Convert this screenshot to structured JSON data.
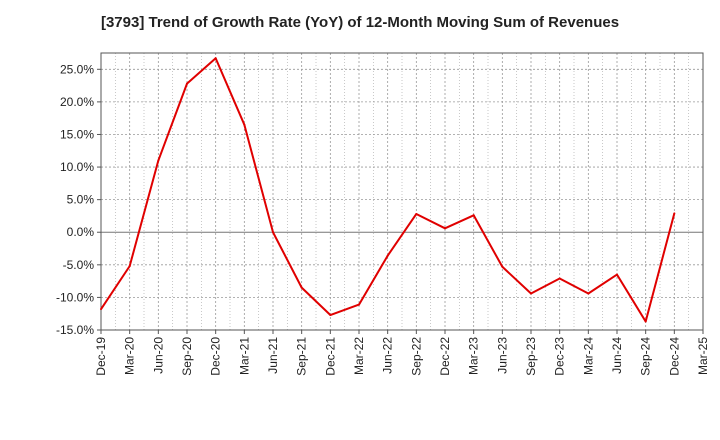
{
  "chart_data": {
    "type": "line",
    "title": "[3793]  Trend of Growth Rate (YoY) of 12-Month Moving Sum of Revenues",
    "xlabel": "",
    "ylabel": "",
    "x_tick_labels": [
      "Dec-19",
      "Mar-20",
      "Jun-20",
      "Sep-20",
      "Dec-20",
      "Mar-21",
      "Jun-21",
      "Sep-21",
      "Dec-21",
      "Mar-22",
      "Jun-22",
      "Sep-22",
      "Dec-22",
      "Mar-23",
      "Jun-23",
      "Sep-23",
      "Dec-23",
      "Mar-24",
      "Jun-24",
      "Sep-24",
      "Dec-24",
      "Mar-25"
    ],
    "y_tick_labels": [
      "25.0%",
      "20.0%",
      "15.0%",
      "10.0%",
      "5.0%",
      "0.0%",
      "-5.0%",
      "-10.0%",
      "-15.0%"
    ],
    "y_ticks": [
      25,
      20,
      15,
      10,
      5,
      0,
      -5,
      -10,
      -15
    ],
    "ylim": [
      -15,
      27.5
    ],
    "grid": true,
    "series": [
      {
        "color": "#e00000",
        "x": [
          "Dec-19",
          "Mar-20",
          "Jun-20",
          "Sep-20",
          "Dec-20",
          "Mar-21",
          "Jun-21",
          "Sep-21",
          "Dec-21",
          "Mar-22",
          "Jun-22",
          "Sep-22",
          "Dec-22",
          "Mar-23",
          "Jun-23",
          "Sep-23",
          "Dec-23",
          "Mar-24",
          "Jun-24",
          "Sep-24",
          "Dec-24"
        ],
        "values": [
          -11.8,
          -5.2,
          11.0,
          22.8,
          26.7,
          16.5,
          0.0,
          -8.5,
          -12.7,
          -11.1,
          -3.6,
          2.8,
          0.6,
          2.6,
          -5.3,
          -9.4,
          -7.1,
          -9.4,
          -6.5,
          -13.7,
          2.9
        ]
      }
    ]
  }
}
